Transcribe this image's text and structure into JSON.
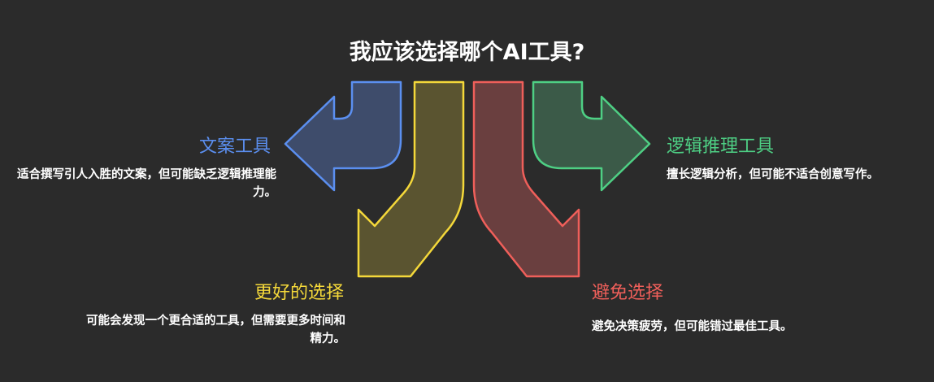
{
  "title": "我应该选择哪个AI工具?",
  "options": [
    {
      "id": "copy",
      "label": "文案工具",
      "description": "适合撰写引人入胜的文案，但可能缺乏逻辑推理能力。",
      "color": "#5b8ff0",
      "fill": "#3e4c6b"
    },
    {
      "id": "better",
      "label": "更好的选择",
      "description": "可能会发现一个更合适的工具，但需要更多时间和精力。",
      "color": "#f4d83a",
      "fill": "#5a5430"
    },
    {
      "id": "avoid",
      "label": "避免选择",
      "description": "避免决策疲劳，但可能错过最佳工具。",
      "color": "#ef5f5a",
      "fill": "#6a3f3f"
    },
    {
      "id": "logic",
      "label": "逻辑推理工具",
      "description": "擅长逻辑分析，但可能不适合创意写作。",
      "color": "#4ecf84",
      "fill": "#3b5a48"
    }
  ]
}
